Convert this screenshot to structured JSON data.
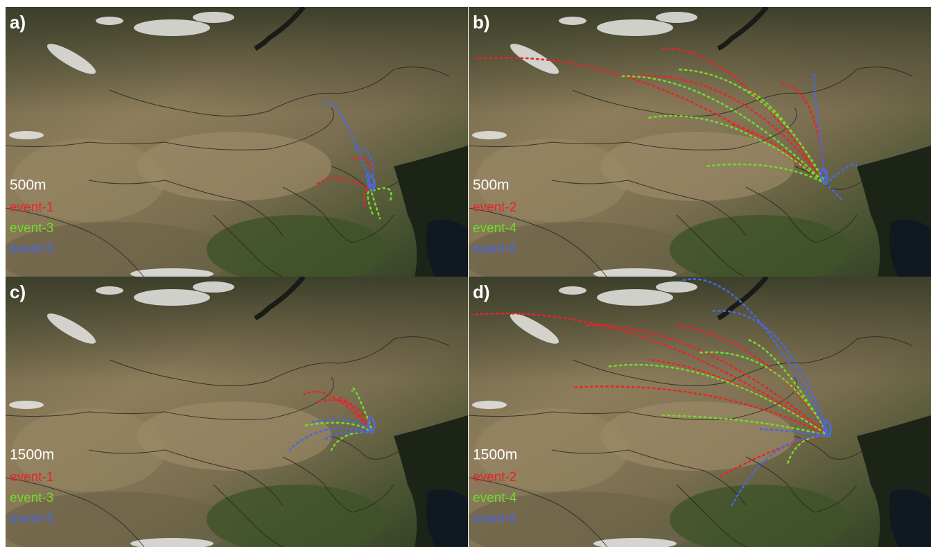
{
  "panels": [
    {
      "label": "a)",
      "height": "500m",
      "events": [
        {
          "name": "event-1",
          "color": "#e8242a"
        },
        {
          "name": "event-3",
          "color": "#6fdc2a"
        },
        {
          "name": "event-5",
          "color": "#4a66e8"
        }
      ]
    },
    {
      "label": "b)",
      "height": "500m",
      "events": [
        {
          "name": "event-2",
          "color": "#e8242a"
        },
        {
          "name": "event-4",
          "color": "#6fdc2a"
        },
        {
          "name": "event-6",
          "color": "#4a66e8"
        }
      ]
    },
    {
      "label": "c)",
      "height": "1500m",
      "events": [
        {
          "name": "event-1",
          "color": "#e8242a"
        },
        {
          "name": "event-3",
          "color": "#6fdc2a"
        },
        {
          "name": "event-5",
          "color": "#4a66e8"
        }
      ]
    },
    {
      "label": "d)",
      "height": "1500m",
      "events": [
        {
          "name": "event-2",
          "color": "#e8242a"
        },
        {
          "name": "event-4",
          "color": "#6fdc2a"
        },
        {
          "name": "event-6",
          "color": "#4a66e8"
        }
      ]
    }
  ]
}
